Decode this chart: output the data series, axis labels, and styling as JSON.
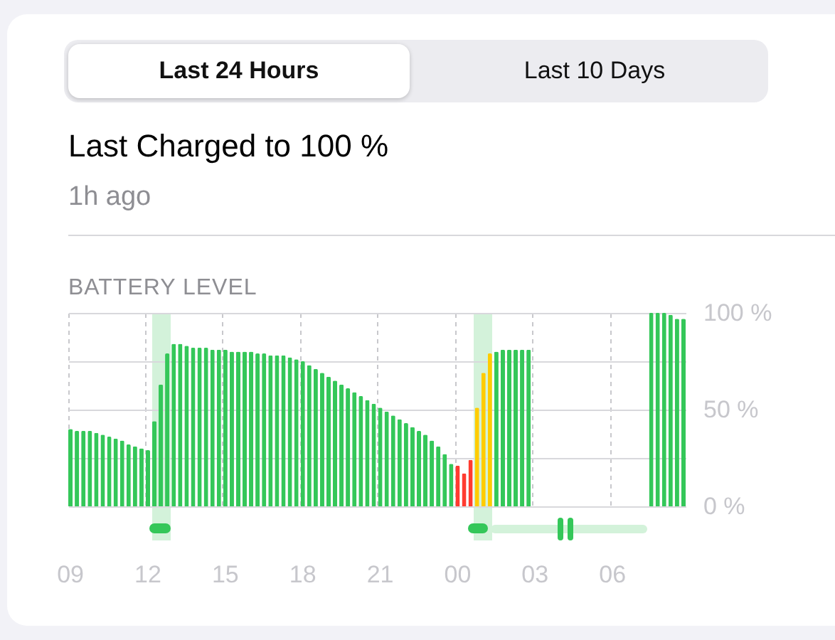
{
  "chart_data": {
    "type": "bar",
    "title": "Last Charged to 100 %",
    "subtitle": "1h ago",
    "ylabel": "BATTERY LEVEL",
    "annotations": [
      "Last 24 Hours",
      "Last 10 Days"
    ],
    "categories": [
      "09",
      null,
      null,
      null,
      null,
      null,
      null,
      null,
      null,
      null,
      null,
      null,
      "12",
      null,
      null,
      null,
      null,
      null,
      null,
      null,
      null,
      null,
      null,
      null,
      "15",
      null,
      null,
      null,
      null,
      null,
      null,
      null,
      null,
      null,
      null,
      null,
      "18",
      null,
      null,
      null,
      null,
      null,
      null,
      null,
      null,
      null,
      null,
      null,
      "21",
      null,
      null,
      null,
      null,
      null,
      null,
      null,
      null,
      null,
      null,
      null,
      "00",
      null,
      null,
      null,
      null,
      null,
      null,
      null,
      null,
      null,
      null,
      null,
      "03",
      null,
      null,
      null,
      null,
      null,
      null,
      null,
      null,
      null,
      null,
      null,
      "06",
      null,
      null,
      null,
      null,
      null,
      null,
      null,
      null,
      null,
      null,
      null
    ],
    "values": [
      40,
      39,
      39,
      39,
      38,
      37,
      36,
      35,
      34,
      32,
      31,
      30,
      29,
      44,
      63,
      79,
      84,
      84,
      83,
      82,
      82,
      82,
      81,
      81,
      81,
      80,
      80,
      80,
      80,
      79,
      79,
      78,
      78,
      78,
      77,
      76,
      75,
      73,
      71,
      69,
      67,
      65,
      63,
      61,
      59,
      57,
      55,
      53,
      51,
      49,
      47,
      45,
      43,
      41,
      39,
      37,
      34,
      31,
      27,
      22,
      21,
      17,
      24,
      51,
      69,
      79,
      80,
      81,
      81,
      81,
      81,
      81,
      null,
      null,
      null,
      null,
      null,
      null,
      null,
      null,
      null,
      null,
      null,
      null,
      null,
      null,
      null,
      null,
      null,
      null,
      100,
      100,
      100,
      99,
      97,
      97
    ],
    "colors": [
      "#34c759",
      "#34c759",
      "#34c759",
      "#34c759",
      "#34c759",
      "#34c759",
      "#34c759",
      "#34c759",
      "#34c759",
      "#34c759",
      "#34c759",
      "#34c759",
      "#34c759",
      "#34c759",
      "#34c759",
      "#34c759",
      "#34c759",
      "#34c759",
      "#34c759",
      "#34c759",
      "#34c759",
      "#34c759",
      "#34c759",
      "#34c759",
      "#34c759",
      "#34c759",
      "#34c759",
      "#34c759",
      "#34c759",
      "#34c759",
      "#34c759",
      "#34c759",
      "#34c759",
      "#34c759",
      "#34c759",
      "#34c759",
      "#34c759",
      "#34c759",
      "#34c759",
      "#34c759",
      "#34c759",
      "#34c759",
      "#34c759",
      "#34c759",
      "#34c759",
      "#34c759",
      "#34c759",
      "#34c759",
      "#34c759",
      "#34c759",
      "#34c759",
      "#34c759",
      "#34c759",
      "#34c759",
      "#34c759",
      "#34c759",
      "#34c759",
      "#34c759",
      "#34c759",
      "#34c759",
      "#ff3b30",
      "#ff3b30",
      "#ff3b30",
      "#ffcc00",
      "#ffcc00",
      "#ffcc00",
      "#34c759",
      "#34c759",
      "#34c759",
      "#34c759",
      "#34c759",
      "#34c759",
      null,
      null,
      null,
      null,
      null,
      null,
      null,
      null,
      null,
      null,
      null,
      null,
      null,
      null,
      null,
      null,
      null,
      null,
      "#34c759",
      "#34c759",
      "#34c759",
      "#34c759",
      "#34c759",
      "#34c759"
    ],
    "ylim": [
      0,
      100
    ],
    "yticks": [
      {
        "value": 0,
        "label": "0 %"
      },
      {
        "value": 25,
        "label": null
      },
      {
        "value": 50,
        "label": "50 %"
      },
      {
        "value": 75,
        "label": null
      },
      {
        "value": 100,
        "label": "100 %"
      }
    ],
    "grid": true
  }
}
